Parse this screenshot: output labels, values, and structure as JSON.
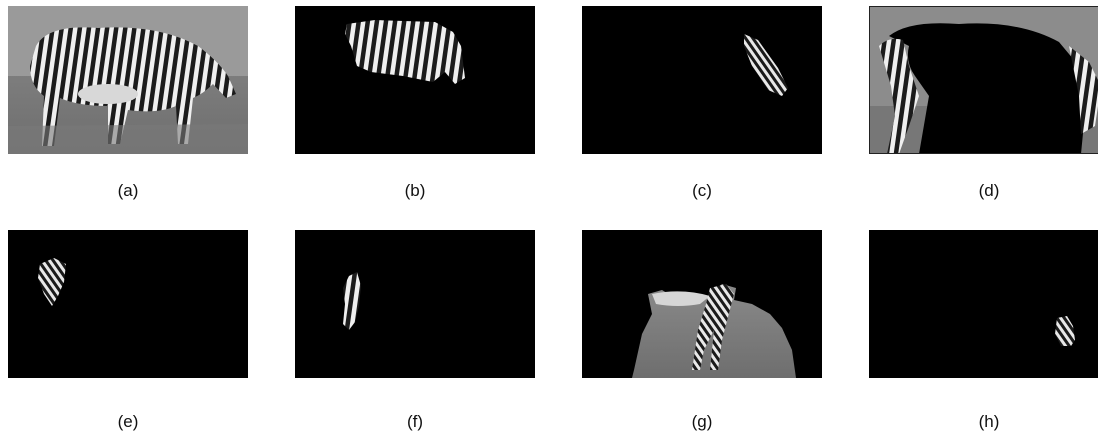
{
  "figure": {
    "panels": [
      {
        "id": "a",
        "caption": "(a)",
        "content": "full-grayscale-zebra"
      },
      {
        "id": "b",
        "caption": "(b)",
        "content": "segment-torso"
      },
      {
        "id": "c",
        "caption": "(c)",
        "content": "segment-shoulder"
      },
      {
        "id": "d",
        "caption": "(d)",
        "content": "segment-background-outline"
      },
      {
        "id": "e",
        "caption": "(e)",
        "content": "segment-hip"
      },
      {
        "id": "f",
        "caption": "(f)",
        "content": "segment-leg"
      },
      {
        "id": "g",
        "caption": "(g)",
        "content": "segment-grass-legs"
      },
      {
        "id": "h",
        "caption": "(h)",
        "content": "segment-head"
      }
    ]
  }
}
